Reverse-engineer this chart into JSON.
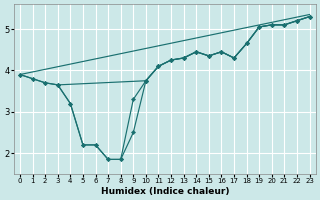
{
  "xlabel": "Humidex (Indice chaleur)",
  "bg_color": "#cce8e8",
  "grid_color": "#ffffff",
  "line_color": "#1a7070",
  "xlim": [
    -0.5,
    23.5
  ],
  "ylim": [
    1.5,
    5.6
  ],
  "xticks": [
    0,
    1,
    2,
    3,
    4,
    5,
    6,
    7,
    8,
    9,
    10,
    11,
    12,
    13,
    14,
    15,
    16,
    17,
    18,
    19,
    20,
    21,
    22,
    23
  ],
  "yticks": [
    2,
    3,
    4,
    5
  ],
  "series": [
    {
      "x": [
        0,
        23
      ],
      "y": [
        3.9,
        5.35
      ],
      "marker": false
    },
    {
      "x": [
        0,
        1,
        2,
        3,
        10,
        11,
        12,
        13,
        14,
        15,
        16,
        17,
        18,
        19,
        20,
        21,
        22,
        23
      ],
      "y": [
        3.9,
        3.8,
        3.7,
        3.65,
        3.75,
        4.1,
        4.25,
        4.3,
        4.45,
        4.35,
        4.45,
        4.3,
        4.65,
        5.05,
        5.1,
        5.1,
        5.2,
        5.3
      ],
      "marker": true
    },
    {
      "x": [
        0,
        1,
        2,
        3,
        4,
        5,
        6,
        7,
        8,
        9,
        10,
        11,
        12,
        13,
        14,
        15,
        16,
        17,
        18,
        19,
        20,
        21,
        22,
        23
      ],
      "y": [
        3.9,
        3.8,
        3.7,
        3.65,
        3.2,
        2.2,
        2.2,
        1.85,
        1.85,
        2.5,
        3.75,
        4.1,
        4.25,
        4.3,
        4.45,
        4.35,
        4.45,
        4.3,
        4.65,
        5.05,
        5.1,
        5.1,
        5.2,
        5.3
      ],
      "marker": true
    },
    {
      "x": [
        3,
        4,
        5,
        6,
        7,
        8,
        9,
        10,
        11,
        12,
        13,
        14,
        15,
        16,
        17,
        18,
        19,
        20,
        21,
        22,
        23
      ],
      "y": [
        3.65,
        3.2,
        2.2,
        2.2,
        1.85,
        1.85,
        3.3,
        3.75,
        4.1,
        4.25,
        4.3,
        4.45,
        4.35,
        4.45,
        4.3,
        4.65,
        5.05,
        5.1,
        5.1,
        5.2,
        5.3
      ],
      "marker": true
    }
  ]
}
